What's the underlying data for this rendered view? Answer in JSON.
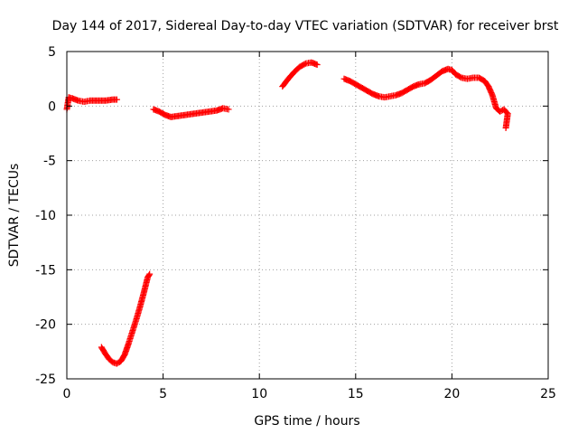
{
  "chart_data": {
    "type": "scatter",
    "title": "Day 144 of 2017, Sidereal Day-to-day VTEC variation (SDTVAR) for receiver brst",
    "xlabel": "GPS time / hours",
    "ylabel": "SDTVAR / TECUs",
    "xlim": [
      0,
      25
    ],
    "ylim": [
      -25,
      5
    ],
    "xticks": [
      0,
      5,
      10,
      15,
      20,
      25
    ],
    "yticks": [
      -25,
      -20,
      -15,
      -10,
      -5,
      0,
      5
    ],
    "grid": true,
    "marker": "+",
    "color": "#ff0000",
    "series": [
      {
        "name": "SDTVAR",
        "segments": [
          [
            [
              0.0,
              -0.3
            ],
            [
              0.1,
              0.8
            ],
            [
              0.3,
              0.7
            ],
            [
              0.6,
              0.5
            ],
            [
              0.9,
              0.4
            ],
            [
              1.2,
              0.5
            ],
            [
              1.6,
              0.5
            ],
            [
              2.0,
              0.5
            ],
            [
              2.4,
              0.6
            ],
            [
              2.6,
              0.6
            ]
          ],
          [
            [
              1.8,
              -22.1
            ],
            [
              2.0,
              -22.7
            ],
            [
              2.2,
              -23.2
            ],
            [
              2.4,
              -23.5
            ],
            [
              2.6,
              -23.6
            ],
            [
              2.8,
              -23.4
            ],
            [
              3.0,
              -22.8
            ],
            [
              3.2,
              -21.8
            ],
            [
              3.4,
              -20.7
            ],
            [
              3.6,
              -19.6
            ],
            [
              3.8,
              -18.4
            ],
            [
              4.0,
              -17.1
            ],
            [
              4.2,
              -15.7
            ],
            [
              4.3,
              -15.4
            ]
          ],
          [
            [
              4.5,
              -0.3
            ],
            [
              4.8,
              -0.5
            ],
            [
              5.1,
              -0.8
            ],
            [
              5.4,
              -1.0
            ],
            [
              5.8,
              -0.9
            ],
            [
              6.2,
              -0.8
            ],
            [
              6.6,
              -0.7
            ],
            [
              7.0,
              -0.6
            ],
            [
              7.4,
              -0.5
            ],
            [
              7.8,
              -0.4
            ],
            [
              8.1,
              -0.2
            ],
            [
              8.4,
              -0.3
            ]
          ],
          [
            [
              11.2,
              1.8
            ],
            [
              11.5,
              2.5
            ],
            [
              11.8,
              3.1
            ],
            [
              12.1,
              3.6
            ],
            [
              12.4,
              3.9
            ],
            [
              12.7,
              4.0
            ],
            [
              13.0,
              3.8
            ]
          ],
          [
            [
              14.4,
              2.5
            ],
            [
              14.7,
              2.3
            ],
            [
              15.0,
              2.0
            ],
            [
              15.3,
              1.7
            ],
            [
              15.6,
              1.4
            ],
            [
              15.9,
              1.1
            ],
            [
              16.2,
              0.9
            ],
            [
              16.5,
              0.8
            ],
            [
              16.8,
              0.9
            ],
            [
              17.1,
              1.0
            ],
            [
              17.4,
              1.2
            ],
            [
              17.7,
              1.5
            ],
            [
              18.0,
              1.8
            ],
            [
              18.3,
              2.0
            ],
            [
              18.6,
              2.1
            ],
            [
              18.9,
              2.4
            ],
            [
              19.2,
              2.8
            ],
            [
              19.5,
              3.2
            ],
            [
              19.8,
              3.4
            ],
            [
              20.0,
              3.3
            ],
            [
              20.2,
              2.9
            ],
            [
              20.5,
              2.6
            ],
            [
              20.8,
              2.5
            ],
            [
              21.1,
              2.6
            ],
            [
              21.4,
              2.6
            ],
            [
              21.7,
              2.3
            ],
            [
              21.9,
              1.8
            ],
            [
              22.1,
              1.0
            ],
            [
              22.3,
              -0.2
            ],
            [
              22.5,
              -0.5
            ],
            [
              22.7,
              -0.3
            ],
            [
              22.9,
              -0.7
            ],
            [
              22.8,
              -2.0
            ]
          ]
        ]
      }
    ]
  }
}
